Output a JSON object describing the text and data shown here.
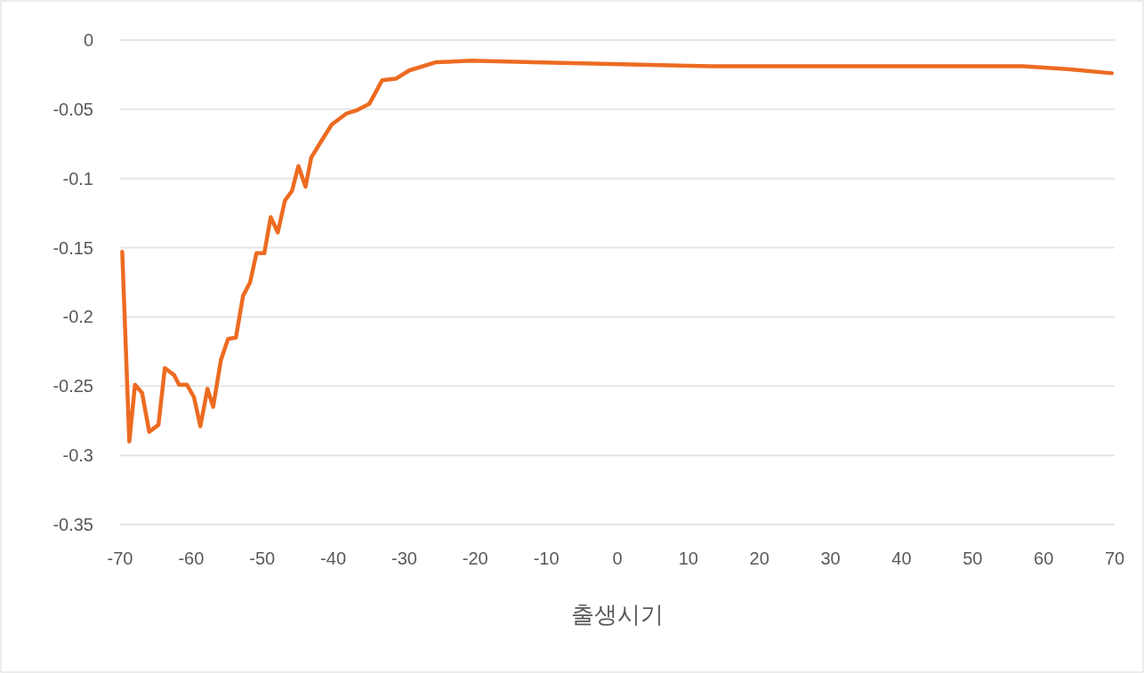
{
  "chart_data": {
    "type": "line",
    "xlabel": "출생시기",
    "xlim": [
      -70,
      70
    ],
    "xticks": [
      -70,
      -60,
      -50,
      -40,
      -30,
      -20,
      -10,
      0,
      10,
      20,
      30,
      40,
      50,
      60,
      70
    ],
    "ylim": [
      -0.35,
      0
    ],
    "yticks": [
      -0.35,
      -0.3,
      -0.25,
      -0.2,
      -0.15,
      -0.1,
      -0.05,
      0
    ],
    "grid": "y",
    "marker": "none",
    "line_style": "solid",
    "series": [
      {
        "color": "#ed6b21",
        "x": [
          -69.7,
          -68.7,
          -67.9,
          -66.9,
          -65.9,
          -64.6,
          -63.7,
          -62.4,
          -61.7,
          -60.6,
          -59.6,
          -58.7,
          -57.7,
          -56.9,
          -55.8,
          -54.8,
          -53.7,
          -52.7,
          -51.7,
          -50.8,
          -49.7,
          -48.8,
          -47.8,
          -46.8,
          -45.8,
          -44.9,
          -43.9,
          -43.1,
          -41.8,
          -40.2,
          -38.1,
          -36.8,
          -34.9,
          -33.1,
          -31.2,
          -29.3,
          -25.5,
          -20.5,
          -11.8,
          13.3,
          38.3,
          57.1,
          63.4,
          69.6
        ],
        "values": [
          -0.153,
          -0.29,
          -0.249,
          -0.255,
          -0.283,
          -0.278,
          -0.237,
          -0.242,
          -0.249,
          -0.249,
          -0.258,
          -0.279,
          -0.252,
          -0.265,
          -0.231,
          -0.216,
          -0.215,
          -0.185,
          -0.175,
          -0.154,
          -0.154,
          -0.128,
          -0.139,
          -0.116,
          -0.109,
          -0.091,
          -0.106,
          -0.085,
          -0.074,
          -0.061,
          -0.053,
          -0.051,
          -0.046,
          -0.029,
          -0.028,
          -0.022,
          -0.016,
          -0.015,
          -0.016,
          -0.019,
          -0.019,
          -0.019,
          -0.021,
          -0.024
        ]
      }
    ]
  }
}
